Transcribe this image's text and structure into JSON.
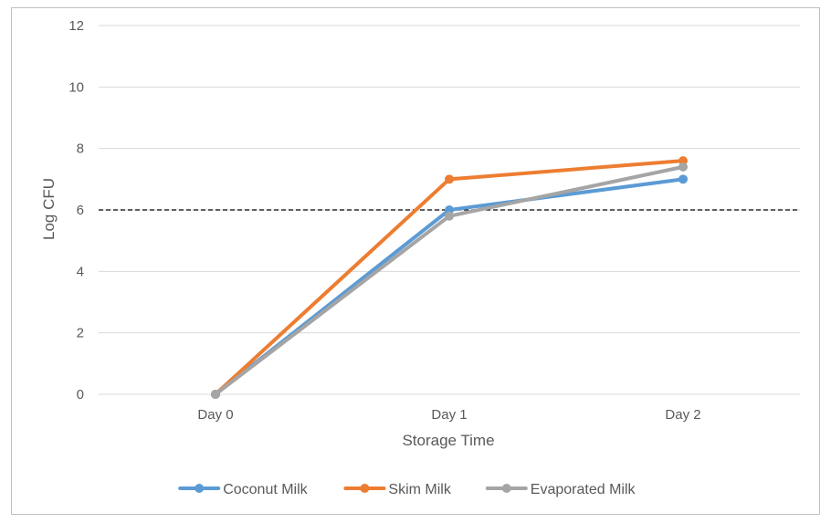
{
  "chart_data": {
    "type": "line",
    "title": "",
    "xlabel": "Storage Time",
    "ylabel": "Log CFU",
    "categories": [
      "Day 0",
      "Day 1",
      "Day 2"
    ],
    "ylim": [
      0,
      12
    ],
    "yticks": [
      0,
      2,
      4,
      6,
      8,
      10,
      12
    ],
    "grid": true,
    "legend_position": "bottom",
    "reference_line": {
      "y": 6,
      "style": "dashed",
      "color": "#000000"
    },
    "series": [
      {
        "name": "Coconut Milk",
        "values": [
          0,
          6,
          7
        ],
        "color": "#5b9bd5"
      },
      {
        "name": "Skim Milk",
        "values": [
          0,
          7,
          7.6
        ],
        "color": "#ed7d31"
      },
      {
        "name": "Evaporated Milk",
        "values": [
          0,
          5.8,
          7.4
        ],
        "color": "#a5a5a5"
      }
    ]
  }
}
